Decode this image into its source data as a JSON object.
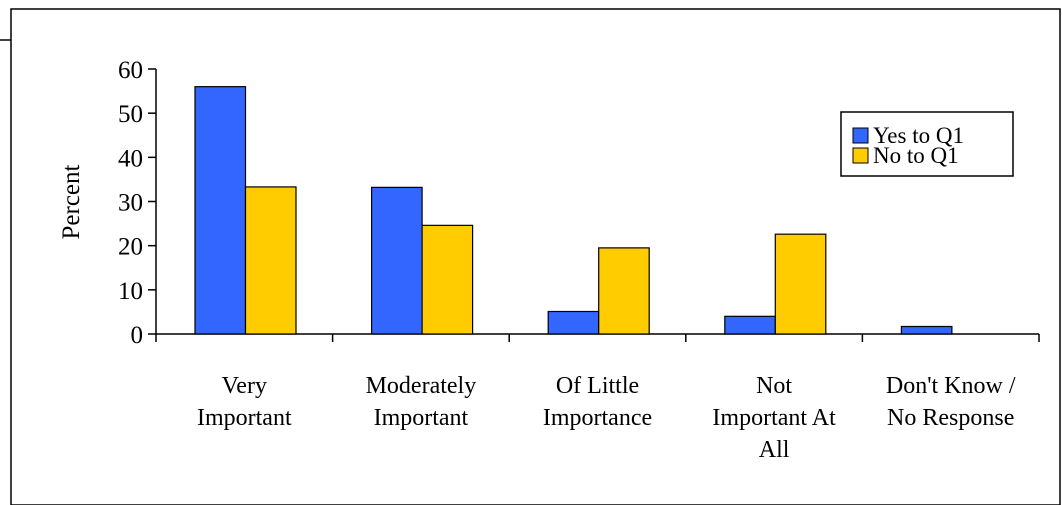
{
  "chart_data": {
    "type": "bar",
    "title": "",
    "xlabel": "",
    "ylabel": "Percent",
    "ylim": [
      0,
      60
    ],
    "yticks": [
      0,
      10,
      20,
      30,
      40,
      50,
      60
    ],
    "grid": false,
    "legend_position": "top-right",
    "categories": [
      [
        "Very",
        "Important"
      ],
      [
        "Moderately",
        "Important"
      ],
      [
        "Of Little",
        "Importance"
      ],
      [
        "Not",
        "Important At",
        "All"
      ],
      [
        "Don't Know /",
        "No Response"
      ]
    ],
    "series": [
      {
        "name": "Yes to Q1",
        "color": "#3366FF",
        "values": [
          56,
          33.2,
          5.1,
          4,
          1.7
        ]
      },
      {
        "name": "No to Q1",
        "color": "#FFCC00",
        "values": [
          33.3,
          24.6,
          19.5,
          22.6,
          0
        ]
      }
    ]
  }
}
